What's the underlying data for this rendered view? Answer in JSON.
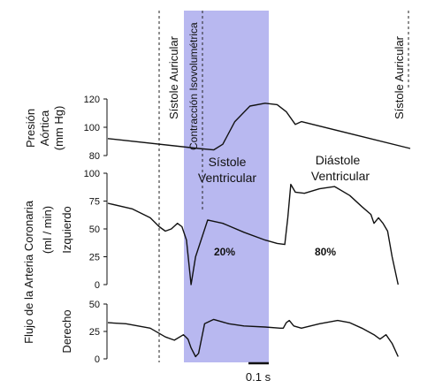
{
  "colors": {
    "systole_band": "#b8b8f0",
    "trace": "#111111"
  },
  "labels": {
    "atrial_systole_1": "Sístole Auricular",
    "atrial_systole_2": "Sístole Auricular",
    "isovolumetric": "Contracción Isovolumétrica",
    "vent_systole_line1": "Sístole",
    "vent_systole_line2": "Ventricular",
    "vent_diastole_line1": "Diástole",
    "vent_diastole_line2": "Ventricular",
    "aortic_ylabel_1": "Presión",
    "aortic_ylabel_2": "Aórtica",
    "aortic_ylabel_3": "(mm Hg)",
    "coronary_ylabel_1": "Flujo de la Arteria Coronaria",
    "coronary_ylabel_2": "(ml / min)",
    "left_label": "Izquierdo",
    "right_label": "Derecho",
    "systole_pct": "20%",
    "diastole_pct": "80%",
    "scale_bar": "0.1 s"
  },
  "chart_data": [
    {
      "type": "line",
      "panel": "aortic_pressure",
      "ylabel": "Presión Aórtica (mm Hg)",
      "ylim": [
        80,
        120
      ],
      "yticks": [
        80,
        100,
        120
      ],
      "x": [
        0.0,
        0.3,
        0.35,
        0.38,
        0.42,
        0.47,
        0.52,
        0.56,
        0.59,
        0.62,
        0.64,
        1.0
      ],
      "values": [
        92,
        85,
        84,
        88,
        104,
        115,
        117,
        116,
        111,
        102,
        104,
        85
      ]
    },
    {
      "type": "line",
      "panel": "left_coronary_flow",
      "ylabel": "Izquierdo",
      "ylim": [
        0,
        100
      ],
      "yticks": [
        0,
        25,
        50,
        75,
        100
      ],
      "x": [
        0.0,
        0.08,
        0.14,
        0.17,
        0.19,
        0.21,
        0.23,
        0.245,
        0.26,
        0.275,
        0.29,
        0.33,
        0.38,
        0.45,
        0.52,
        0.56,
        0.585,
        0.595,
        0.605,
        0.62,
        0.65,
        0.7,
        0.75,
        0.8,
        0.84,
        0.87,
        0.88,
        0.895,
        0.91,
        0.925,
        0.94,
        0.96
      ],
      "values": [
        73,
        68,
        60,
        52,
        48,
        50,
        55,
        52,
        40,
        0,
        25,
        58,
        55,
        47,
        40,
        37,
        36,
        60,
        90,
        83,
        82,
        86,
        88,
        80,
        70,
        63,
        55,
        60,
        55,
        48,
        25,
        0
      ]
    },
    {
      "type": "line",
      "panel": "right_coronary_flow",
      "ylabel": "Derecho",
      "ylim": [
        0,
        50
      ],
      "yticks": [
        0,
        25,
        50
      ],
      "x": [
        0.0,
        0.06,
        0.14,
        0.19,
        0.22,
        0.25,
        0.265,
        0.275,
        0.29,
        0.3,
        0.32,
        0.35,
        0.4,
        0.45,
        0.52,
        0.57,
        0.58,
        0.59,
        0.6,
        0.615,
        0.64,
        0.7,
        0.76,
        0.8,
        0.84,
        0.88,
        0.9,
        0.92,
        0.94,
        0.96
      ],
      "values": [
        33,
        32,
        28,
        20,
        17,
        22,
        18,
        10,
        2,
        5,
        32,
        36,
        32,
        30,
        29,
        28,
        28,
        33,
        35,
        30,
        28,
        32,
        35,
        33,
        28,
        22,
        18,
        22,
        14,
        2
      ]
    }
  ]
}
